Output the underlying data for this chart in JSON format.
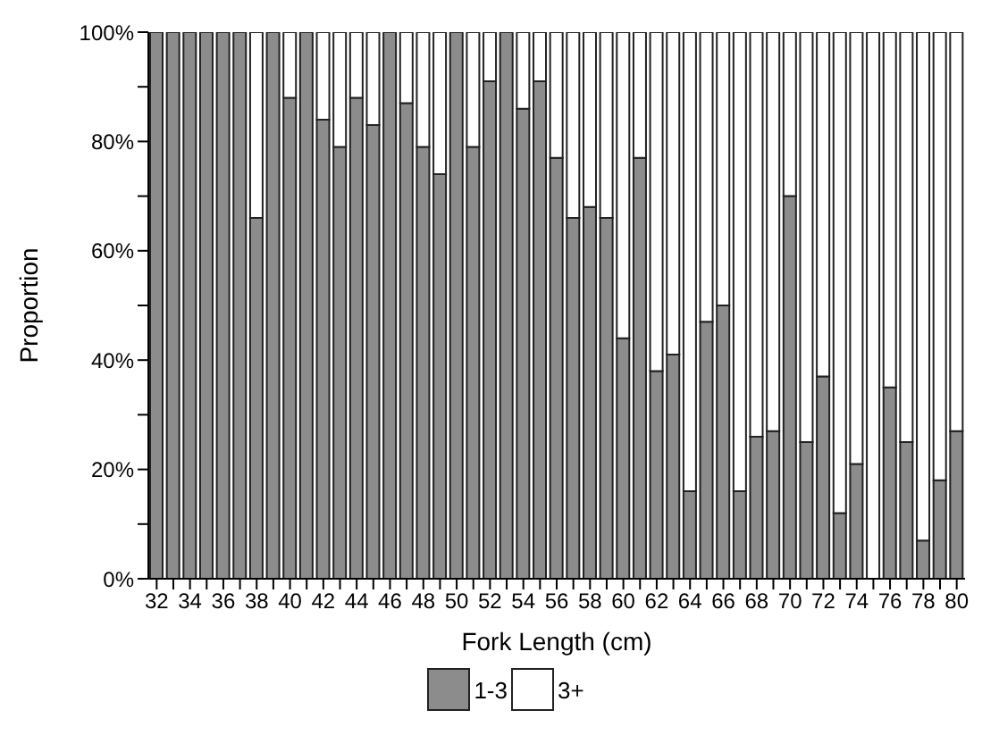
{
  "chart_data": {
    "type": "bar",
    "stacked": true,
    "xlabel": "Fork Length (cm)",
    "ylabel": "Proportion",
    "categories": [
      "32",
      null,
      "34",
      null,
      "36",
      null,
      "38",
      null,
      "40",
      null,
      "42",
      null,
      "44",
      null,
      "46",
      null,
      "48",
      null,
      "50",
      null,
      "52",
      null,
      "54",
      null,
      "56",
      null,
      "58",
      null,
      "60",
      null,
      "62",
      null,
      "64",
      null,
      "66",
      null,
      "68",
      null,
      "70",
      null,
      "72",
      null,
      "74",
      null,
      "76",
      null,
      "78",
      null,
      "80"
    ],
    "series": [
      {
        "name": "1-3",
        "color": "#8c8c8c",
        "values": [
          100,
          100,
          100,
          100,
          100,
          100,
          66,
          100,
          88,
          100,
          84,
          79,
          88,
          83,
          100,
          87,
          79,
          74,
          100,
          79,
          91,
          100,
          86,
          91,
          77,
          66,
          68,
          66,
          44,
          77,
          38,
          41,
          16,
          47,
          50,
          16,
          26,
          27,
          70,
          25,
          37,
          12,
          21,
          0,
          35,
          25,
          7,
          18,
          27
        ]
      },
      {
        "name": "3+",
        "color": "#ffffff",
        "values": [
          0,
          0,
          0,
          0,
          0,
          0,
          34,
          0,
          12,
          0,
          16,
          21,
          12,
          17,
          0,
          13,
          21,
          26,
          0,
          21,
          9,
          0,
          14,
          9,
          23,
          34,
          32,
          34,
          56,
          23,
          62,
          59,
          84,
          53,
          50,
          84,
          74,
          73,
          30,
          75,
          63,
          88,
          79,
          100,
          65,
          75,
          93,
          82,
          73
        ]
      }
    ],
    "ylim": [
      0,
      100
    ],
    "yticks": [
      {
        "value": 0,
        "label": "0%"
      },
      {
        "value": 10,
        "label": null
      },
      {
        "value": 20,
        "label": "20%"
      },
      {
        "value": 30,
        "label": null
      },
      {
        "value": 40,
        "label": "40%"
      },
      {
        "value": 50,
        "label": null
      },
      {
        "value": 60,
        "label": "60%"
      },
      {
        "value": 70,
        "label": null
      },
      {
        "value": 80,
        "label": "80%"
      },
      {
        "value": 90,
        "label": null
      },
      {
        "value": 100,
        "label": "100%"
      }
    ],
    "legend": "bottom"
  }
}
